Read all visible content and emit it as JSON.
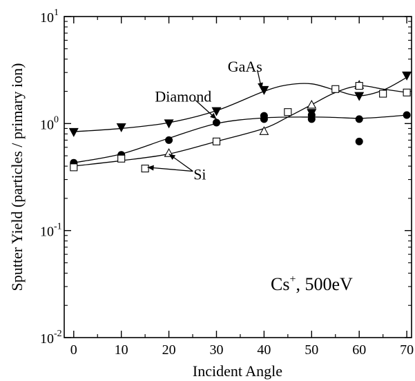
{
  "chart_data": {
    "type": "scatter",
    "title": "",
    "xlabel": "Incident Angle",
    "ylabel": "Sputter Yield (particles / primary ion)",
    "xlim": [
      -2,
      71
    ],
    "ylim": [
      0.01,
      10
    ],
    "yscale": "log",
    "grid": false,
    "legend": "none",
    "x_ticks": [
      {
        "value": 0,
        "label": "0"
      },
      {
        "value": 10,
        "label": "10"
      },
      {
        "value": 20,
        "label": "20"
      },
      {
        "value": 30,
        "label": "30"
      },
      {
        "value": 40,
        "label": "40"
      },
      {
        "value": 50,
        "label": "50"
      },
      {
        "value": 60,
        "label": "60"
      },
      {
        "value": 70,
        "label": "70"
      }
    ],
    "y_ticks": [
      {
        "value": 10,
        "mantissa": "10",
        "exponent": "1"
      },
      {
        "value": 1,
        "mantissa": "10",
        "exponent": "0"
      },
      {
        "value": 0.1,
        "mantissa": "10",
        "exponent": "-1"
      },
      {
        "value": 0.01,
        "mantissa": "10",
        "exponent": "-2"
      }
    ],
    "series": [
      {
        "label": "GaAs",
        "marker": "triangle-down-filled",
        "points": [
          [
            0,
            0.83
          ],
          [
            10,
            0.92
          ],
          [
            20,
            1.0
          ],
          [
            30,
            1.3
          ],
          [
            40,
            2.05
          ],
          [
            50,
            1.25
          ],
          [
            60,
            1.8
          ],
          [
            70,
            2.8
          ]
        ],
        "fit": [
          [
            0,
            0.84
          ],
          [
            10,
            0.9
          ],
          [
            20,
            1.02
          ],
          [
            30,
            1.32
          ],
          [
            40,
            2.0
          ],
          [
            45,
            2.3
          ],
          [
            50,
            2.35
          ],
          [
            55,
            2.05
          ],
          [
            60,
            1.82
          ],
          [
            65,
            2.05
          ],
          [
            70,
            2.7
          ]
        ]
      },
      {
        "label": "Diamond",
        "marker": "circle-filled",
        "points": [
          [
            0,
            0.43
          ],
          [
            10,
            0.51
          ],
          [
            20,
            0.7
          ],
          [
            30,
            1.02
          ],
          [
            40,
            1.18
          ],
          [
            40,
            1.1
          ],
          [
            50,
            1.2
          ],
          [
            50,
            1.1
          ],
          [
            60,
            1.1
          ],
          [
            60,
            0.68
          ],
          [
            70,
            1.2
          ]
        ],
        "fit": [
          [
            0,
            0.43
          ],
          [
            10,
            0.52
          ],
          [
            20,
            0.73
          ],
          [
            30,
            1.0
          ],
          [
            40,
            1.13
          ],
          [
            50,
            1.15
          ],
          [
            55,
            1.14
          ],
          [
            60,
            1.12
          ],
          [
            65,
            1.15
          ],
          [
            70,
            1.2
          ]
        ]
      },
      {
        "label": "Si",
        "marker": "triangle-up-open",
        "points": [
          [
            20,
            0.53
          ],
          [
            40,
            0.85
          ],
          [
            50,
            1.5
          ],
          [
            60,
            2.3
          ]
        ],
        "fit": [
          [
            0,
            0.4
          ],
          [
            10,
            0.45
          ],
          [
            20,
            0.52
          ],
          [
            30,
            0.68
          ],
          [
            40,
            0.9
          ],
          [
            45,
            1.15
          ],
          [
            50,
            1.5
          ],
          [
            55,
            1.95
          ],
          [
            60,
            2.25
          ],
          [
            65,
            2.1
          ],
          [
            70,
            1.95
          ]
        ]
      },
      {
        "label": "Si",
        "marker": "square-open",
        "points": [
          [
            0,
            0.39
          ],
          [
            10,
            0.47
          ],
          [
            15,
            0.38
          ],
          [
            30,
            0.68
          ],
          [
            45,
            1.28
          ],
          [
            55,
            2.1
          ],
          [
            60,
            2.25
          ],
          [
            65,
            1.9
          ],
          [
            70,
            1.95
          ]
        ]
      }
    ],
    "annotations": [
      {
        "text": "GaAs",
        "x": 36,
        "y": 3.05,
        "arrow_to": [
          39.5,
          2.1
        ]
      },
      {
        "text": "Diamond",
        "x": 23,
        "y": 1.6,
        "arrow_to": [
          30,
          1.1
        ]
      },
      {
        "text": "Si",
        "x": 26.5,
        "y": 0.3,
        "arrow_to": [
          [
            15.5,
            0.39
          ],
          [
            20,
            0.52
          ]
        ]
      }
    ],
    "note": {
      "base": "Cs",
      "sup": "+",
      "rest": ", 500eV"
    }
  }
}
